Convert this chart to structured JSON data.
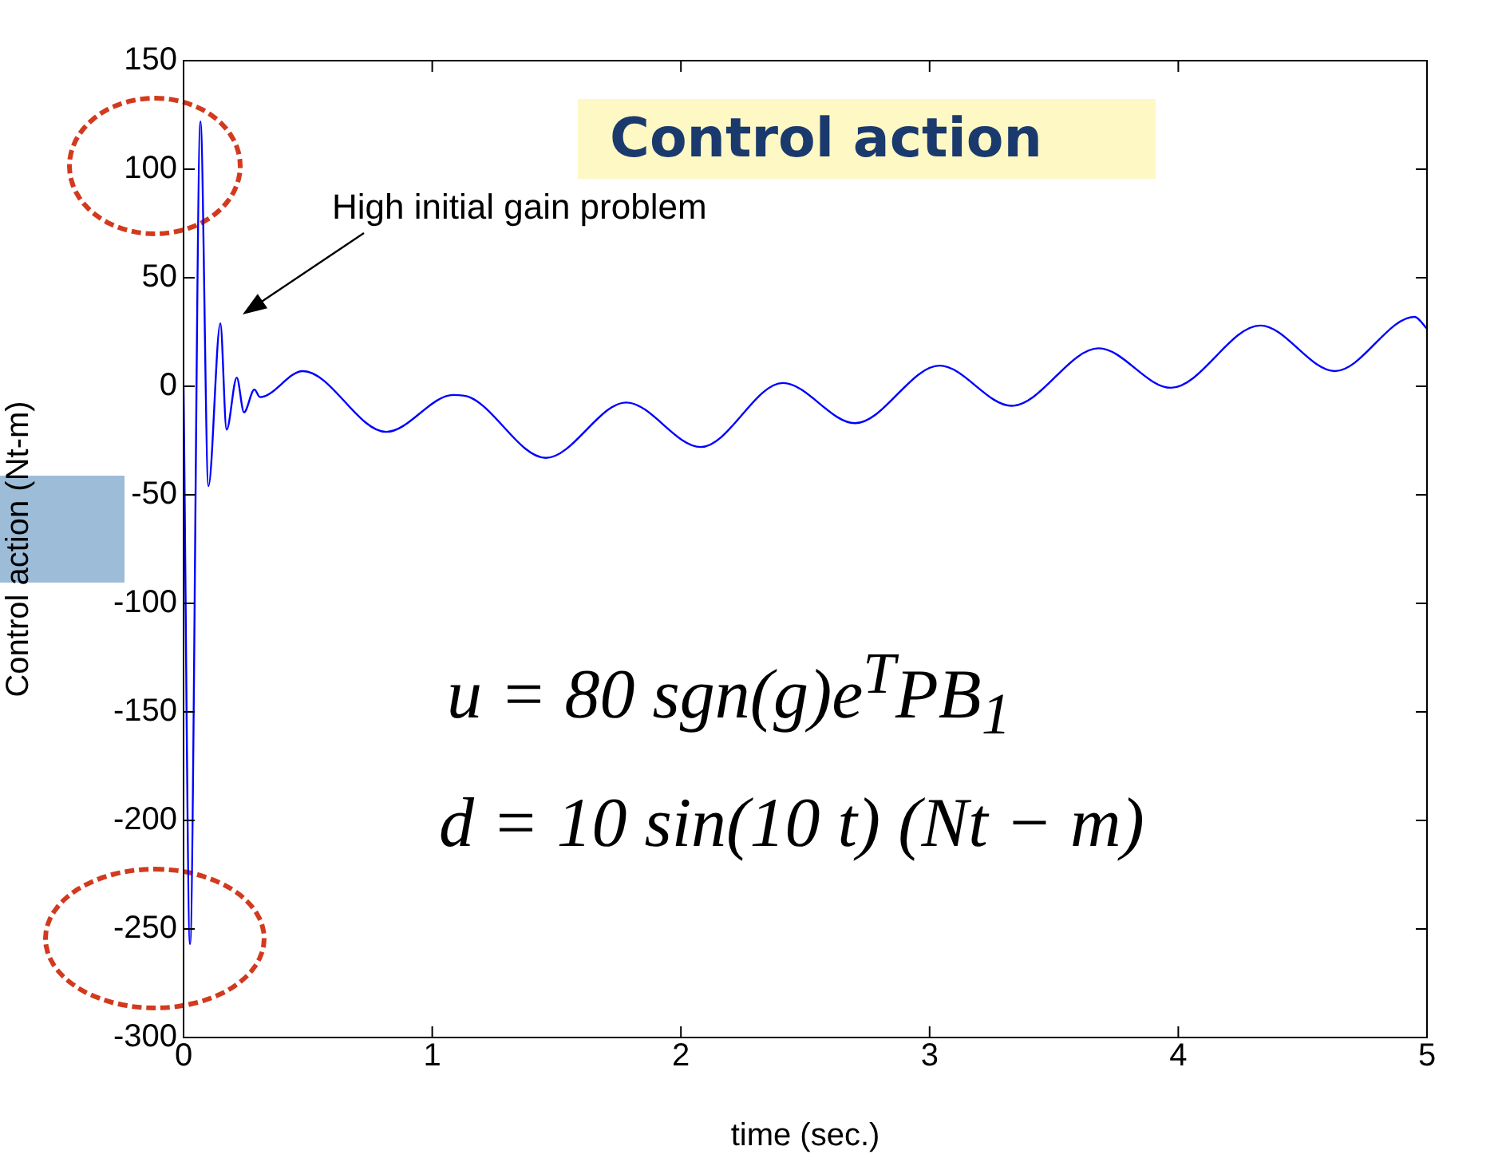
{
  "chart_data": {
    "type": "line",
    "title": "Control action",
    "xlabel": "time (sec.)",
    "ylabel": "Control action (Nt-m)",
    "x": [
      0,
      0.026,
      0.068,
      0.1,
      0.148,
      0.173,
      0.214,
      0.243,
      0.285,
      0.307,
      0.48,
      0.815,
      1.085,
      1.15,
      1.457,
      1.78,
      2.08,
      2.41,
      2.7,
      3.04,
      3.33,
      3.68,
      3.97,
      4.33,
      4.63,
      4.95,
      5
    ],
    "series": [
      {
        "color": "#0000ff",
        "values": [
          0,
          -257,
          122,
          -46,
          29,
          -20,
          4,
          -12,
          -1.5,
          -5,
          7,
          -21,
          -4,
          -5,
          -33,
          -7.5,
          -28,
          1.5,
          -17,
          9.5,
          -9,
          17.5,
          -0.7,
          28,
          7,
          32,
          26.5
        ]
      }
    ],
    "xlim": [
      0,
      5
    ],
    "xticks": [
      0,
      1,
      2,
      3,
      4,
      5
    ],
    "ylim": [
      -300,
      150
    ],
    "yticks": [
      -300,
      -250,
      -200,
      -150,
      -100,
      -50,
      0,
      50,
      100,
      150
    ],
    "grid": false,
    "legend": false,
    "marker": "none",
    "line_style": "solid",
    "annotations": [
      "High initial gain problem",
      "u = 80 sgn(g)e$^{T}$PB$_{1}$",
      "d = 10 sin(10 t) (Nt − m)"
    ]
  }
}
